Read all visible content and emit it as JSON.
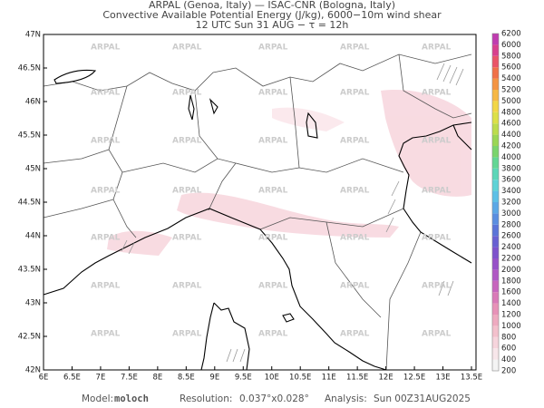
{
  "header": {
    "line1": "ARPAL (Genoa, Italy)  —  ISAC-CNR (Bologna, Italy)",
    "line2": "Convective Available Potential Energy (J/kg), 6000−10m wind shear",
    "line3": "12 UTC Sun 31 AUG  −  τ = 12h"
  },
  "map": {
    "lat_labels": [
      "42N",
      "42.5N",
      "43N",
      "43.5N",
      "44N",
      "44.5N",
      "45N",
      "45.5N",
      "46N",
      "46.5N",
      "47N"
    ],
    "lon_labels": [
      "6E",
      "6.5E",
      "7E",
      "7.5E",
      "8E",
      "8.5E",
      "9E",
      "9.5E",
      "10E",
      "10.5E",
      "11E",
      "11.5E",
      "12E",
      "12.5E",
      "13E",
      "13.5E"
    ],
    "watermark": "ARPAL"
  },
  "colorbar": {
    "labels": [
      200,
      400,
      600,
      800,
      1000,
      1200,
      1400,
      1600,
      1800,
      2000,
      2200,
      2400,
      2600,
      2800,
      3000,
      3200,
      3400,
      3600,
      3800,
      4000,
      4200,
      4400,
      4600,
      4800,
      5000,
      5200,
      5400,
      5600,
      5800,
      6000,
      6200
    ],
    "colors": [
      "#f4f4f4",
      "#f7e6ea",
      "#f6d4dc",
      "#f3c0cc",
      "#eeaac0",
      "#e792b8",
      "#d97ab8",
      "#c766be",
      "#b058c4",
      "#9750c8",
      "#7e52cc",
      "#6860d2",
      "#5a74d8",
      "#5a8ee0",
      "#5ca8e6",
      "#5ec0e6",
      "#5ed2d6",
      "#5cd6b8",
      "#62d694",
      "#7ad46c",
      "#9ad654",
      "#bcdc4c",
      "#dce048",
      "#f2d646",
      "#f6b844",
      "#f49442",
      "#f07048",
      "#ea5468",
      "#d8408e",
      "#c03cb0"
    ]
  },
  "footer": {
    "model_label": "Model:",
    "model": "moloch",
    "resolution_label": "Resolution:",
    "resolution": "0.037°x0.028°",
    "analysis_label": "Analysis:",
    "analysis": "Sun 00Z31AUG2025"
  }
}
